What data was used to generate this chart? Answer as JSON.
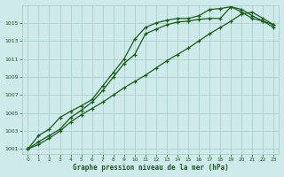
{
  "title": "Graphe pression niveau de la mer (hPa)",
  "bg_color": "#ceeaea",
  "grid_color": "#aecece",
  "line_color": "#1a5c1a",
  "xlim": [
    -0.5,
    23.5
  ],
  "ylim": [
    1000.5,
    1017.0
  ],
  "yticks": [
    1001,
    1003,
    1005,
    1007,
    1009,
    1011,
    1013,
    1015
  ],
  "xticks": [
    0,
    1,
    2,
    3,
    4,
    5,
    6,
    7,
    8,
    9,
    10,
    11,
    12,
    13,
    14,
    15,
    16,
    17,
    18,
    19,
    20,
    21,
    22,
    23
  ],
  "line1_x": [
    0,
    1,
    2,
    3,
    4,
    5,
    6,
    7,
    8,
    9,
    10,
    11,
    12,
    13,
    14,
    15,
    16,
    17,
    18,
    19,
    20,
    21,
    22,
    23
  ],
  "line1_y": [
    1001.0,
    1001.8,
    1002.5,
    1003.2,
    1004.5,
    1005.3,
    1006.2,
    1007.5,
    1009.0,
    1010.5,
    1011.5,
    1013.8,
    1014.3,
    1014.8,
    1015.1,
    1015.2,
    1015.4,
    1015.5,
    1015.5,
    1016.8,
    1016.2,
    1015.5,
    1015.2,
    1014.8
  ],
  "line2_x": [
    0,
    1,
    2,
    3,
    4,
    5,
    6,
    7,
    8,
    9,
    10,
    11,
    12,
    13,
    14,
    15,
    16,
    17,
    18,
    19,
    20,
    21,
    22,
    23
  ],
  "line2_y": [
    1001.0,
    1001.5,
    1002.2,
    1003.0,
    1004.0,
    1004.8,
    1005.5,
    1006.2,
    1007.0,
    1007.8,
    1008.5,
    1009.2,
    1010.0,
    1010.8,
    1011.5,
    1012.2,
    1013.0,
    1013.8,
    1014.5,
    1015.2,
    1016.0,
    1016.2,
    1015.5,
    1014.8
  ],
  "line3_x": [
    0,
    1,
    2,
    3,
    4,
    5,
    6,
    7,
    8,
    9,
    10,
    11,
    12,
    13,
    14,
    15,
    16,
    17,
    18,
    19,
    20,
    21,
    22,
    23
  ],
  "line3_y": [
    1001.0,
    1002.5,
    1003.2,
    1004.5,
    1005.2,
    1005.8,
    1006.5,
    1008.0,
    1009.5,
    1011.0,
    1013.2,
    1014.5,
    1015.0,
    1015.3,
    1015.5,
    1015.5,
    1015.8,
    1016.5,
    1016.6,
    1016.8,
    1016.5,
    1015.8,
    1015.2,
    1014.5
  ]
}
